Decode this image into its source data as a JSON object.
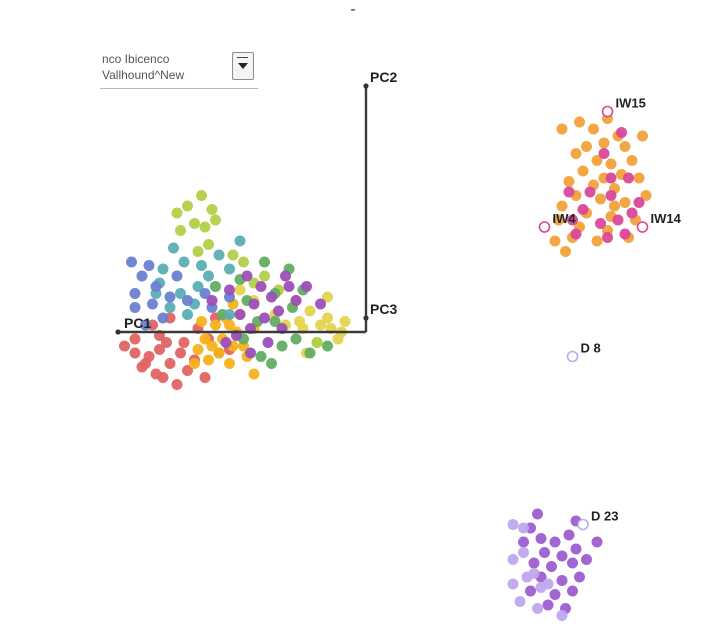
{
  "top_mark": "-",
  "selector": {
    "line1": "nco Ibicenco",
    "line2": "Vallhound^New"
  },
  "caption": "",
  "chart_data": {
    "type": "scatter",
    "title": "",
    "axes_labels": [
      "PC1",
      "PC2",
      "PC3"
    ],
    "palette": {
      "red": "#e06464",
      "gold": "#f6b21c",
      "yellow": "#e4d44e",
      "lime": "#b3cf4a",
      "green": "#62ad62",
      "teal": "#5aaeb4",
      "blue": "#6a7fd0",
      "purple": "#9c4fb8",
      "orange": "#f2a23a",
      "magenta": "#d9479a",
      "violet": "#9d5ed0",
      "lavender": "#bfa8ee"
    },
    "series": [
      {
        "color": "red",
        "points": [
          [
            -6.9,
            -0.4
          ],
          [
            -6.6,
            -0.6
          ],
          [
            -6.2,
            -0.7
          ],
          [
            -5.9,
            -0.5
          ],
          [
            -6.4,
            -1.0
          ],
          [
            -6.0,
            -1.2
          ],
          [
            -5.6,
            -0.9
          ],
          [
            -5.8,
            -1.3
          ],
          [
            -5.3,
            -0.6
          ],
          [
            -5.1,
            -1.1
          ],
          [
            -6.6,
            -0.2
          ],
          [
            -5.4,
            -1.5
          ],
          [
            -4.9,
            -0.8
          ],
          [
            -5.7,
            -0.3
          ],
          [
            -6.3,
            -0.9
          ],
          [
            -4.6,
            -1.3
          ],
          [
            -5.2,
            -0.3
          ],
          [
            -5.9,
            -0.1
          ],
          [
            -6.1,
            0.2
          ],
          [
            -4.5,
            -0.2
          ],
          [
            -4.2,
            -0.6
          ],
          [
            -4.8,
            0.1
          ],
          [
            -3.9,
            -0.5
          ],
          [
            -4.3,
            0.4
          ],
          [
            -5.6,
            0.4
          ]
        ]
      },
      {
        "color": "gold",
        "points": [
          [
            -4.9,
            -0.9
          ],
          [
            -4.5,
            -0.8
          ],
          [
            -4.2,
            -0.6
          ],
          [
            -3.8,
            -0.4
          ],
          [
            -4.6,
            -0.2
          ],
          [
            -3.9,
            -0.9
          ],
          [
            -3.7,
            0.0
          ],
          [
            -4.3,
            0.2
          ],
          [
            -3.5,
            -0.4
          ],
          [
            -4.0,
            0.4
          ],
          [
            -4.4,
            -0.4
          ],
          [
            -3.6,
            0.5
          ],
          [
            -4.7,
            0.3
          ],
          [
            -3.2,
            0.1
          ],
          [
            -3.9,
            0.2
          ],
          [
            -3.8,
            0.8
          ],
          [
            -4.1,
            -0.2
          ],
          [
            -3.2,
            -1.2
          ],
          [
            -4.8,
            -0.5
          ],
          [
            -3.4,
            -0.7
          ]
        ]
      },
      {
        "color": "yellow",
        "points": [
          [
            -1.3,
            0.2
          ],
          [
            -1.0,
            0.1
          ],
          [
            -1.6,
            0.6
          ],
          [
            -0.8,
            -0.2
          ],
          [
            -1.9,
            0.3
          ],
          [
            -1.1,
            0.4
          ],
          [
            -2.0,
            0.9
          ],
          [
            -0.7,
            0.0
          ],
          [
            -1.4,
            -0.3
          ],
          [
            -1.8,
            0.1
          ],
          [
            -2.3,
            0.2
          ],
          [
            -2.6,
            0.5
          ],
          [
            -0.6,
            0.3
          ],
          [
            -1.1,
            1.0
          ],
          [
            -3.6,
            1.2
          ],
          [
            -3.2,
            0.9
          ],
          [
            -1.7,
            -0.6
          ]
        ]
      },
      {
        "color": "lime",
        "points": [
          [
            -5.1,
            3.6
          ],
          [
            -4.7,
            3.9
          ],
          [
            -4.4,
            3.5
          ],
          [
            -4.9,
            3.1
          ],
          [
            -4.3,
            3.2
          ],
          [
            -5.4,
            3.4
          ],
          [
            -4.6,
            3.0
          ],
          [
            -5.3,
            2.9
          ],
          [
            -3.8,
            2.2
          ],
          [
            -3.5,
            2.0
          ],
          [
            -4.5,
            2.5
          ],
          [
            -2.9,
            1.6
          ],
          [
            -2.5,
            1.2
          ],
          [
            -4.8,
            2.3
          ],
          [
            -1.4,
            -0.3
          ],
          [
            -3.2,
            1.4
          ]
        ]
      },
      {
        "color": "green",
        "points": [
          [
            -3.6,
            1.5
          ],
          [
            -2.9,
            2.0
          ],
          [
            -2.6,
            1.1
          ],
          [
            -2.2,
            1.8
          ],
          [
            -3.4,
            0.9
          ],
          [
            -2.1,
            0.7
          ],
          [
            -1.8,
            1.2
          ],
          [
            -1.6,
            -0.6
          ],
          [
            -2.4,
            -0.4
          ],
          [
            -2.6,
            0.3
          ],
          [
            -3.0,
            -0.7
          ],
          [
            -4.3,
            1.3
          ],
          [
            -4.1,
            0.5
          ],
          [
            -3.1,
            0.3
          ],
          [
            -2.7,
            -0.9
          ],
          [
            -1.1,
            -0.4
          ],
          [
            -3.5,
            -0.2
          ],
          [
            -2.0,
            -0.2
          ]
        ]
      },
      {
        "color": "teal",
        "points": [
          [
            -5.8,
            1.8
          ],
          [
            -5.5,
            2.4
          ],
          [
            -5.2,
            2.0
          ],
          [
            -4.7,
            1.9
          ],
          [
            -5.9,
            1.4
          ],
          [
            -4.5,
            1.6
          ],
          [
            -5.3,
            1.1
          ],
          [
            -4.9,
            0.8
          ],
          [
            -5.6,
            0.7
          ],
          [
            -4.2,
            2.2
          ],
          [
            -3.9,
            1.8
          ],
          [
            -6.0,
            1.1
          ],
          [
            -3.6,
            2.6
          ],
          [
            -4.8,
            1.3
          ],
          [
            -5.1,
            0.5
          ],
          [
            -3.9,
            0.5
          ]
        ]
      },
      {
        "color": "blue",
        "points": [
          [
            -6.7,
            2.0
          ],
          [
            -6.4,
            1.6
          ],
          [
            -6.6,
            1.1
          ],
          [
            -6.0,
            1.3
          ],
          [
            -6.1,
            0.8
          ],
          [
            -6.6,
            0.7
          ],
          [
            -5.6,
            1.0
          ],
          [
            -5.8,
            0.4
          ],
          [
            -6.3,
            0.2
          ],
          [
            -5.4,
            1.6
          ],
          [
            -4.6,
            1.1
          ],
          [
            -4.4,
            0.7
          ],
          [
            -5.1,
            0.9
          ],
          [
            -6.2,
            1.9
          ],
          [
            -3.9,
            1.0
          ]
        ]
      },
      {
        "color": "purple",
        "points": [
          [
            -3.4,
            1.6
          ],
          [
            -3.0,
            1.3
          ],
          [
            -3.2,
            0.8
          ],
          [
            -2.7,
            1.0
          ],
          [
            -3.6,
            0.5
          ],
          [
            -2.9,
            0.4
          ],
          [
            -3.3,
            0.1
          ],
          [
            -2.5,
            0.6
          ],
          [
            -2.3,
            1.6
          ],
          [
            -2.2,
            1.3
          ],
          [
            -3.7,
            -0.1
          ],
          [
            -2.8,
            -0.3
          ],
          [
            -1.3,
            0.8
          ],
          [
            -1.7,
            1.3
          ],
          [
            -3.9,
            1.2
          ],
          [
            -2.4,
            0.1
          ],
          [
            -4.0,
            -0.3
          ],
          [
            -3.3,
            -0.6
          ],
          [
            -4.4,
            0.9
          ],
          [
            -2.0,
            0.9
          ]
        ]
      },
      {
        "color": "orange",
        "points": [
          [
            6.1,
            6.0
          ],
          [
            6.5,
            5.8
          ],
          [
            6.9,
            6.1
          ],
          [
            7.2,
            5.6
          ],
          [
            6.3,
            5.3
          ],
          [
            6.8,
            5.4
          ],
          [
            7.4,
            5.3
          ],
          [
            6.0,
            5.1
          ],
          [
            6.6,
            4.9
          ],
          [
            7.0,
            4.8
          ],
          [
            7.6,
            4.9
          ],
          [
            6.2,
            4.6
          ],
          [
            6.8,
            4.4
          ],
          [
            7.3,
            4.5
          ],
          [
            5.8,
            4.3
          ],
          [
            6.5,
            4.2
          ],
          [
            7.1,
            4.1
          ],
          [
            7.8,
            4.4
          ],
          [
            6.0,
            3.9
          ],
          [
            6.7,
            3.8
          ],
          [
            5.6,
            3.6
          ],
          [
            7.4,
            3.7
          ],
          [
            8.0,
            3.9
          ],
          [
            6.3,
            3.4
          ],
          [
            7.0,
            3.3
          ],
          [
            5.5,
            3.2
          ],
          [
            7.7,
            3.2
          ],
          [
            6.1,
            3.0
          ],
          [
            6.9,
            2.9
          ],
          [
            5.9,
            2.7
          ],
          [
            6.6,
            2.6
          ],
          [
            7.5,
            2.7
          ],
          [
            5.4,
            2.6
          ],
          [
            5.6,
            5.8
          ],
          [
            7.9,
            5.6
          ],
          [
            5.7,
            2.3
          ],
          [
            7.1,
            3.6
          ]
        ]
      },
      {
        "color": "magenta",
        "points": [
          [
            7.3,
            5.7
          ],
          [
            6.8,
            5.1
          ],
          [
            7.5,
            4.4
          ],
          [
            6.4,
            4.0
          ],
          [
            7.0,
            3.9
          ],
          [
            7.8,
            3.7
          ],
          [
            6.2,
            3.5
          ],
          [
            7.2,
            3.2
          ],
          [
            5.9,
            3.2
          ],
          [
            6.7,
            3.1
          ],
          [
            7.6,
            3.4
          ],
          [
            6.9,
            2.7
          ],
          [
            7.4,
            2.8
          ],
          [
            6.0,
            2.8
          ],
          [
            5.8,
            4.0
          ],
          [
            7.0,
            4.4
          ]
        ]
      },
      {
        "color": "violet",
        "points": [
          [
            4.7,
            -5.6
          ],
          [
            5.0,
            -5.9
          ],
          [
            5.4,
            -6.0
          ],
          [
            5.8,
            -5.8
          ],
          [
            5.1,
            -6.3
          ],
          [
            5.6,
            -6.4
          ],
          [
            6.0,
            -6.2
          ],
          [
            4.8,
            -6.6
          ],
          [
            5.3,
            -6.7
          ],
          [
            5.9,
            -6.6
          ],
          [
            6.3,
            -6.5
          ],
          [
            5.0,
            -7.0
          ],
          [
            5.6,
            -7.1
          ],
          [
            6.1,
            -7.0
          ],
          [
            4.7,
            -7.4
          ],
          [
            5.4,
            -7.5
          ],
          [
            5.9,
            -7.4
          ],
          [
            5.2,
            -7.8
          ],
          [
            5.7,
            -7.9
          ],
          [
            4.9,
            -5.2
          ],
          [
            6.0,
            -5.4
          ],
          [
            6.6,
            -6.0
          ],
          [
            4.5,
            -6.0
          ]
        ]
      },
      {
        "color": "lavender",
        "points": [
          [
            4.2,
            -5.5
          ],
          [
            4.5,
            -6.3
          ],
          [
            4.2,
            -6.5
          ],
          [
            4.6,
            -7.0
          ],
          [
            4.2,
            -7.2
          ],
          [
            4.4,
            -7.7
          ],
          [
            4.9,
            -7.9
          ],
          [
            5.0,
            -7.3
          ],
          [
            4.8,
            -6.9
          ],
          [
            5.2,
            -7.2
          ],
          [
            4.5,
            -5.6
          ],
          [
            5.6,
            -8.1
          ]
        ]
      }
    ],
    "labeled_points": [
      {
        "label": "IW15",
        "x": 6.9,
        "y": 6.3,
        "filled": false,
        "color": "magenta"
      },
      {
        "label": "IW4",
        "x": 5.1,
        "y": 3.0,
        "filled": false,
        "color": "magenta"
      },
      {
        "label": "IW14",
        "x": 7.9,
        "y": 3.0,
        "filled": false,
        "color": "magenta"
      },
      {
        "label": "D 8",
        "x": 5.9,
        "y": -0.7,
        "filled": false,
        "color": "lavender"
      },
      {
        "label": "D 23",
        "x": 6.2,
        "y": -5.5,
        "filled": false,
        "color": "lavender"
      }
    ]
  }
}
